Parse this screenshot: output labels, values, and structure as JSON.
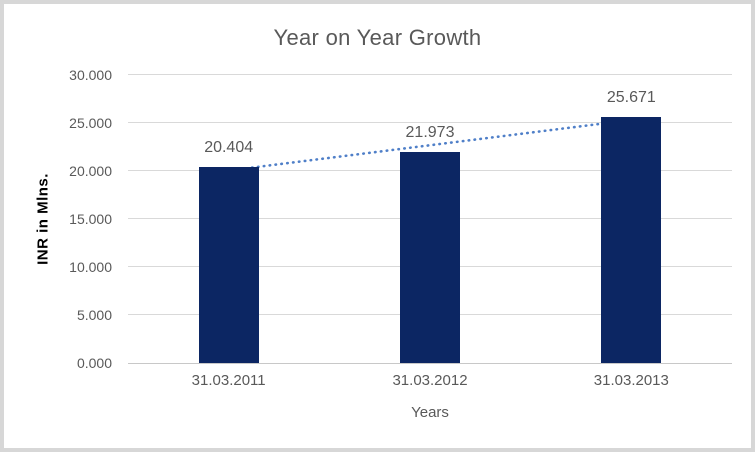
{
  "chart_data": {
    "type": "bar",
    "title": "Year on Year Growth",
    "categories": [
      "31.03.2011",
      "31.03.2012",
      "31.03.2013"
    ],
    "values": [
      20.404,
      21.973,
      25.671
    ],
    "data_labels": [
      "20.404",
      "21.973",
      "25.671"
    ],
    "series": [
      {
        "name": "INR in Mlns.",
        "values": [
          20.404,
          21.973,
          25.671
        ]
      }
    ],
    "xlabel": "Years",
    "ylabel": "INR in Mlns.",
    "ylim": [
      0,
      30
    ],
    "ytick_interval": 5,
    "ytick_labels": [
      "0.000",
      "5.000",
      "10.000",
      "15.000",
      "20.000",
      "25.000",
      "30.000"
    ],
    "grid": true,
    "legend_position": "none",
    "trendline": {
      "type": "linear",
      "style": "dotted"
    }
  },
  "colors": {
    "bar_fill": "#0c2663",
    "trendline": "#4f7fc8",
    "gridline": "#d9d9d9",
    "axis_line": "#c8c8c8",
    "text_gray": "#595959",
    "axis_title_text": "#000000",
    "frame_border": "#d7d7d7",
    "background": "#ffffff"
  }
}
